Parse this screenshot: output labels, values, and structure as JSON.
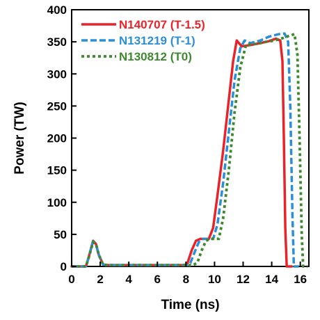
{
  "chart_data": {
    "type": "line",
    "title": "",
    "xlabel": "Time (ns)",
    "ylabel": "Power (TW)",
    "xlim": [
      0,
      16.6
    ],
    "ylim": [
      0,
      400
    ],
    "xticks": [
      0,
      2,
      4,
      6,
      8,
      10,
      12,
      14,
      16
    ],
    "yticks": [
      0,
      50,
      100,
      150,
      200,
      250,
      300,
      350,
      400
    ],
    "grid": false,
    "legend_position": "top-left",
    "series": [
      {
        "name": "N140707 (T-1.5)",
        "color": "#e8232a",
        "dash": "solid",
        "points": [
          [
            0,
            0
          ],
          [
            1.0,
            0
          ],
          [
            1.2,
            15
          ],
          [
            1.5,
            40
          ],
          [
            1.7,
            35
          ],
          [
            1.9,
            18
          ],
          [
            2.2,
            3
          ],
          [
            2.5,
            2
          ],
          [
            4,
            2
          ],
          [
            6,
            2
          ],
          [
            7.9,
            2
          ],
          [
            8.1,
            5
          ],
          [
            8.4,
            25
          ],
          [
            8.7,
            40
          ],
          [
            9.0,
            43
          ],
          [
            9.6,
            43
          ],
          [
            9.9,
            60
          ],
          [
            10.2,
            110
          ],
          [
            10.6,
            180
          ],
          [
            11.0,
            260
          ],
          [
            11.3,
            320
          ],
          [
            11.55,
            352
          ],
          [
            11.9,
            343
          ],
          [
            12.5,
            345
          ],
          [
            13.2,
            348
          ],
          [
            13.8,
            351
          ],
          [
            14.3,
            355
          ],
          [
            14.6,
            352
          ],
          [
            14.75,
            320
          ],
          [
            14.85,
            200
          ],
          [
            14.95,
            60
          ],
          [
            15.05,
            0
          ],
          [
            15.4,
            0
          ]
        ]
      },
      {
        "name": "N131219 (T-1)",
        "color": "#2b8fd8",
        "dash": "dashed",
        "points": [
          [
            0,
            0
          ],
          [
            1.0,
            0
          ],
          [
            1.2,
            15
          ],
          [
            1.5,
            39
          ],
          [
            1.7,
            35
          ],
          [
            1.9,
            18
          ],
          [
            2.2,
            3
          ],
          [
            2.5,
            2
          ],
          [
            4,
            2
          ],
          [
            6,
            2
          ],
          [
            8.1,
            2
          ],
          [
            8.3,
            5
          ],
          [
            8.6,
            22
          ],
          [
            8.9,
            38
          ],
          [
            9.2,
            43
          ],
          [
            9.9,
            43
          ],
          [
            10.2,
            65
          ],
          [
            10.6,
            130
          ],
          [
            11.0,
            210
          ],
          [
            11.4,
            290
          ],
          [
            11.8,
            340
          ],
          [
            12.1,
            352
          ],
          [
            12.5,
            348
          ],
          [
            13.2,
            352
          ],
          [
            13.8,
            358
          ],
          [
            14.5,
            362
          ],
          [
            14.9,
            363
          ],
          [
            15.15,
            350
          ],
          [
            15.3,
            250
          ],
          [
            15.45,
            80
          ],
          [
            15.55,
            0
          ],
          [
            15.9,
            0
          ]
        ]
      },
      {
        "name": "N130812 (T0)",
        "color": "#3d8a2e",
        "dash": "dotted",
        "points": [
          [
            0,
            0
          ],
          [
            1.0,
            0
          ],
          [
            1.2,
            14
          ],
          [
            1.5,
            38
          ],
          [
            1.7,
            35
          ],
          [
            1.9,
            18
          ],
          [
            2.2,
            3
          ],
          [
            2.5,
            2
          ],
          [
            4,
            2
          ],
          [
            6,
            2
          ],
          [
            8.5,
            2
          ],
          [
            8.8,
            6
          ],
          [
            9.1,
            25
          ],
          [
            9.4,
            40
          ],
          [
            9.7,
            43
          ],
          [
            10.3,
            43
          ],
          [
            10.6,
            75
          ],
          [
            11.0,
            150
          ],
          [
            11.4,
            240
          ],
          [
            11.8,
            310
          ],
          [
            12.2,
            345
          ],
          [
            12.5,
            346
          ],
          [
            13.0,
            347
          ],
          [
            13.6,
            350
          ],
          [
            14.2,
            352
          ],
          [
            14.8,
            356
          ],
          [
            15.3,
            360
          ],
          [
            15.6,
            362
          ],
          [
            15.8,
            330
          ],
          [
            15.95,
            200
          ],
          [
            16.1,
            50
          ],
          [
            16.2,
            0
          ],
          [
            16.5,
            0
          ]
        ]
      }
    ]
  }
}
